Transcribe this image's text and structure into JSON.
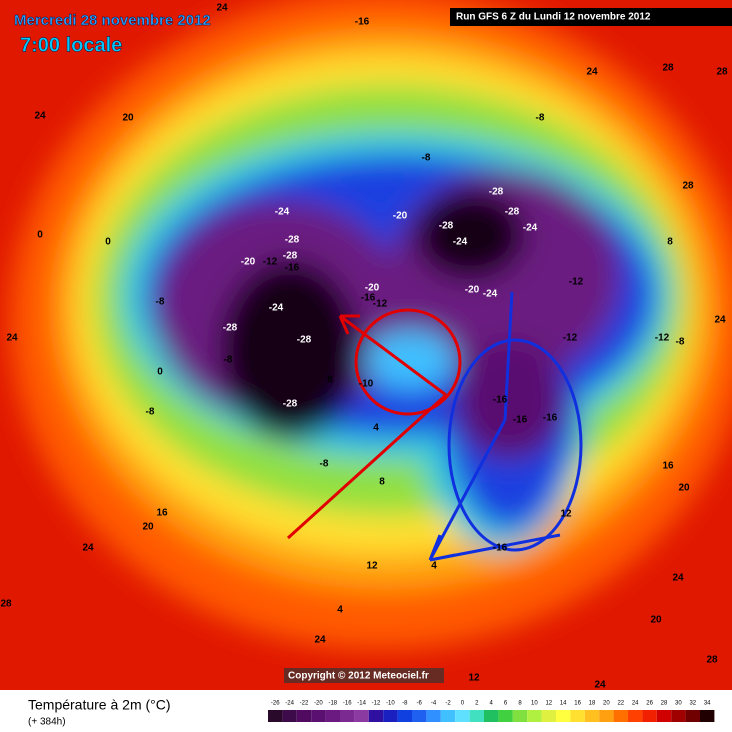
{
  "header": {
    "date": "Mercredi 28 novembre 2012",
    "time": "7:00 locale",
    "run": "Run GFS 6 Z du Lundi 12 novembre 2012"
  },
  "map": {
    "contour_labels": [
      24,
      -16,
      24,
      28,
      28,
      24,
      20,
      -8,
      28,
      -8,
      -24,
      -20,
      -28,
      -28,
      -24,
      -28,
      -24,
      0,
      0,
      8,
      -28,
      -28,
      -12,
      -16,
      -20,
      -20,
      -12,
      -16,
      -20,
      -24,
      -12,
      24,
      24,
      -28,
      -24,
      -28,
      -12,
      -12,
      -8,
      -8,
      -8,
      0,
      -8,
      8,
      -10,
      -28,
      4,
      -16,
      -16,
      -16,
      -8,
      20,
      16,
      24,
      8,
      12,
      4,
      -16,
      12,
      16,
      20,
      24,
      20,
      28,
      24,
      28,
      12,
      24,
      4
    ],
    "copyright": "Copyright © 2012 Meteociel.fr"
  },
  "footer": {
    "title": "Température à 2m (°C)",
    "lead": "(+ 384h)"
  },
  "legend": {
    "ticks": [
      -26,
      -24,
      -22,
      -20,
      -18,
      -16,
      -14,
      -12,
      -10,
      -8,
      -6,
      -4,
      -2,
      0,
      2,
      4,
      6,
      8,
      10,
      12,
      14,
      16,
      18,
      20,
      22,
      24,
      26,
      28,
      30,
      32,
      34
    ],
    "colors": [
      "#2a0a2a",
      "#3d0a4a",
      "#500a60",
      "#5a1070",
      "#6a1a80",
      "#7a2a90",
      "#8a3aa0",
      "#3010a0",
      "#1a20c0",
      "#1040e0",
      "#2060f0",
      "#3090ff",
      "#40c0ff",
      "#60e0ff",
      "#40e0c0",
      "#20c060",
      "#40d040",
      "#80e040",
      "#b0f040",
      "#e0f040",
      "#ffff40",
      "#ffe030",
      "#ffc020",
      "#ffa010",
      "#ff7000",
      "#ff4000",
      "#f02000",
      "#d00000",
      "#a00000",
      "#700000",
      "#200000"
    ]
  }
}
